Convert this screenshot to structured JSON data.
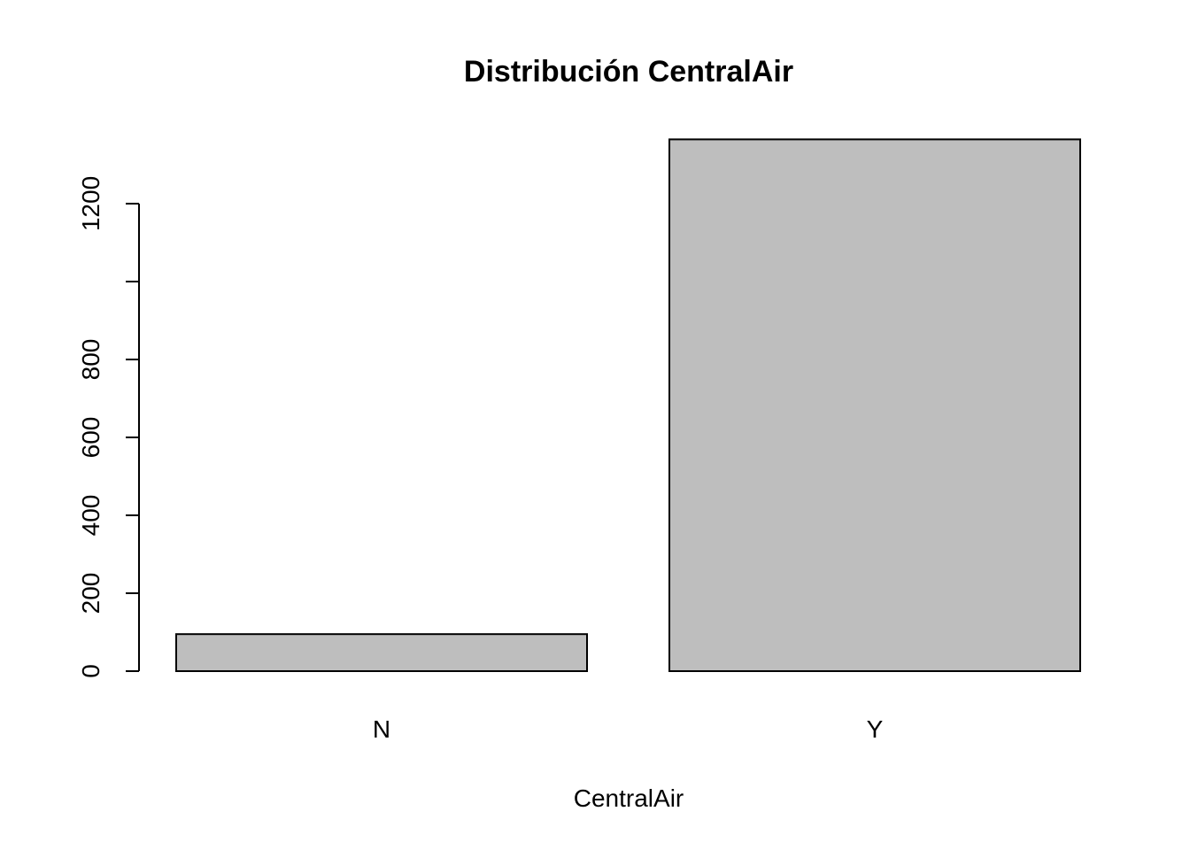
{
  "chart_data": {
    "type": "bar",
    "title": "Distribución CentralAir",
    "xlabel": "CentralAir",
    "ylabel": "",
    "categories": [
      "N",
      "Y"
    ],
    "values": [
      95,
      1365
    ],
    "ylim": [
      0,
      1365
    ],
    "yticks": [
      0,
      200,
      400,
      600,
      800,
      1000,
      1200
    ],
    "ytick_labels": [
      "0",
      "200",
      "400",
      "600",
      "800",
      "",
      "1200"
    ],
    "bar_color": "#bebebe",
    "grid": false,
    "legend": "none"
  }
}
